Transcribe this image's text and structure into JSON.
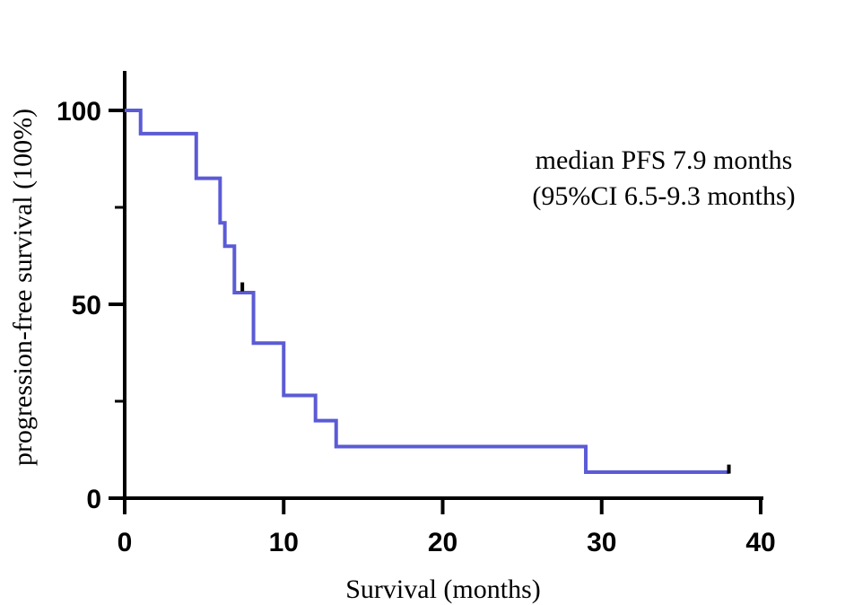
{
  "chart_data": {
    "type": "line",
    "title": "",
    "xlabel": "Survival (months)",
    "ylabel": "progression-free survival (100%)",
    "xlim": [
      0,
      40
    ],
    "ylim": [
      0,
      100
    ],
    "x_ticks": [
      "0",
      "10",
      "20",
      "30",
      "40"
    ],
    "y_ticks": [
      "0",
      "50",
      "100"
    ],
    "grid": false,
    "series": [
      {
        "color": "#5b5bd6",
        "step": true,
        "x": [
          0,
          1,
          4.5,
          6,
          6.3,
          6.9,
          7.3,
          8.1,
          10,
          12,
          13.3,
          29,
          38
        ],
        "y": [
          100,
          94,
          82.5,
          71,
          65,
          53,
          53,
          40,
          26.5,
          20,
          13.3,
          6.7,
          6.7
        ]
      }
    ],
    "censored": [
      {
        "x": 7.4,
        "y": 54.5
      },
      {
        "x": 38.0,
        "y": 7.5
      }
    ],
    "annotations": [
      "median PFS 7.9 months",
      "(95%CI 6.5-9.3 months)"
    ]
  }
}
